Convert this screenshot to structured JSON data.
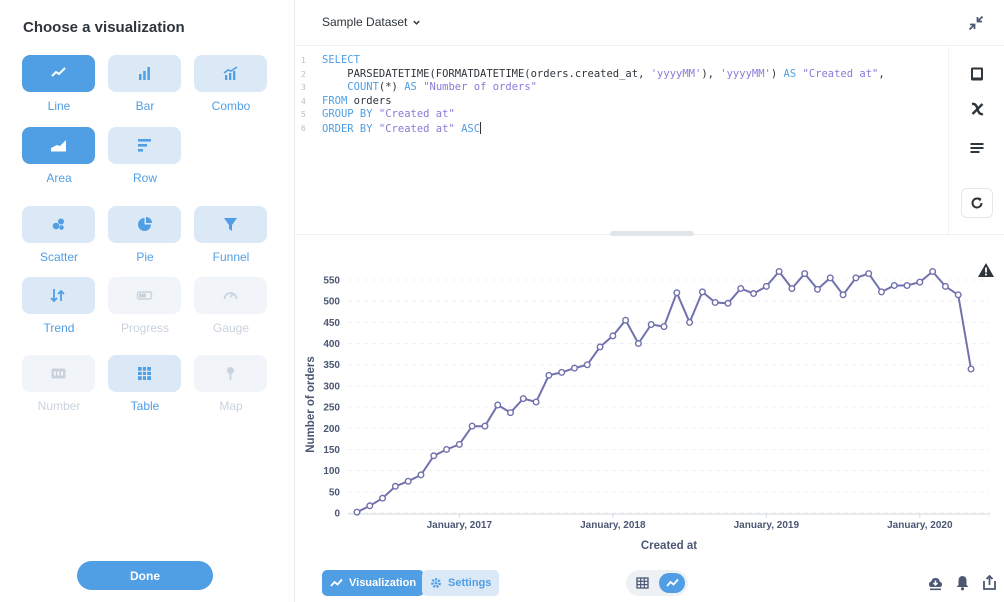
{
  "sidebar": {
    "title": "Choose a visualization",
    "items": [
      {
        "label": "Line",
        "icon": "line-icon",
        "state": "active"
      },
      {
        "label": "Bar",
        "icon": "bar-icon",
        "state": "normal"
      },
      {
        "label": "Combo",
        "icon": "combo-icon",
        "state": "normal"
      },
      {
        "label": "Area",
        "icon": "area-icon",
        "state": "active"
      },
      {
        "label": "Row",
        "icon": "row-icon",
        "state": "normal"
      },
      {
        "label": "Scatter",
        "icon": "scatter-icon",
        "state": "normal"
      },
      {
        "label": "Pie",
        "icon": "pie-icon",
        "state": "normal"
      },
      {
        "label": "Funnel",
        "icon": "funnel-icon",
        "state": "normal"
      },
      {
        "label": "Trend",
        "icon": "trend-icon",
        "state": "normal"
      },
      {
        "label": "Progress",
        "icon": "progress-icon",
        "state": "disabled"
      },
      {
        "label": "Gauge",
        "icon": "gauge-icon",
        "state": "disabled"
      },
      {
        "label": "Number",
        "icon": "number-icon",
        "state": "disabled"
      },
      {
        "label": "Table",
        "icon": "table-icon",
        "state": "normal"
      },
      {
        "label": "Map",
        "icon": "map-pin-icon",
        "state": "disabled"
      }
    ],
    "done_label": "Done"
  },
  "header": {
    "dataset": "Sample Dataset"
  },
  "editor": {
    "lines": [
      {
        "num": "1",
        "code": "SELECT"
      },
      {
        "num": "2",
        "code": "    PARSEDATETIME(FORMATDATETIME(orders.created_at, 'yyyyMM'), 'yyyyMM') AS \"Created at\","
      },
      {
        "num": "3",
        "code": "    COUNT(*) AS \"Number of orders\""
      },
      {
        "num": "4",
        "code": "FROM orders"
      },
      {
        "num": "5",
        "code": "GROUP BY \"Created at\""
      },
      {
        "num": "6",
        "code": "ORDER BY \"Created at\" ASC"
      }
    ]
  },
  "footer": {
    "visualization_label": "Visualization",
    "settings_label": "Settings"
  },
  "colors": {
    "accent": "#509ee3",
    "accent_light": "#dbe9f7",
    "line": "#7172ad"
  },
  "chart_data": {
    "type": "line",
    "xlabel": "Created at",
    "ylabel": "Number of orders",
    "ylim": [
      0,
      550
    ],
    "yticks": [
      0,
      50,
      100,
      150,
      200,
      250,
      300,
      350,
      400,
      450,
      500,
      550
    ],
    "xtick_labels": [
      "January, 2017",
      "January, 2018",
      "January, 2019",
      "January, 2020"
    ],
    "xtick_index": [
      8,
      20,
      32,
      44
    ],
    "series": [
      {
        "values": [
          2,
          17,
          35,
          63,
          75,
          90,
          135,
          150,
          162,
          205,
          205,
          255,
          237,
          270,
          262,
          325,
          332,
          342,
          350,
          392,
          418,
          455,
          400,
          445,
          440,
          520,
          450,
          522,
          497,
          495,
          530,
          518,
          535,
          570,
          530,
          565,
          528,
          555,
          515,
          555,
          565,
          522,
          537,
          537,
          545,
          570,
          535,
          515,
          340
        ]
      }
    ]
  }
}
